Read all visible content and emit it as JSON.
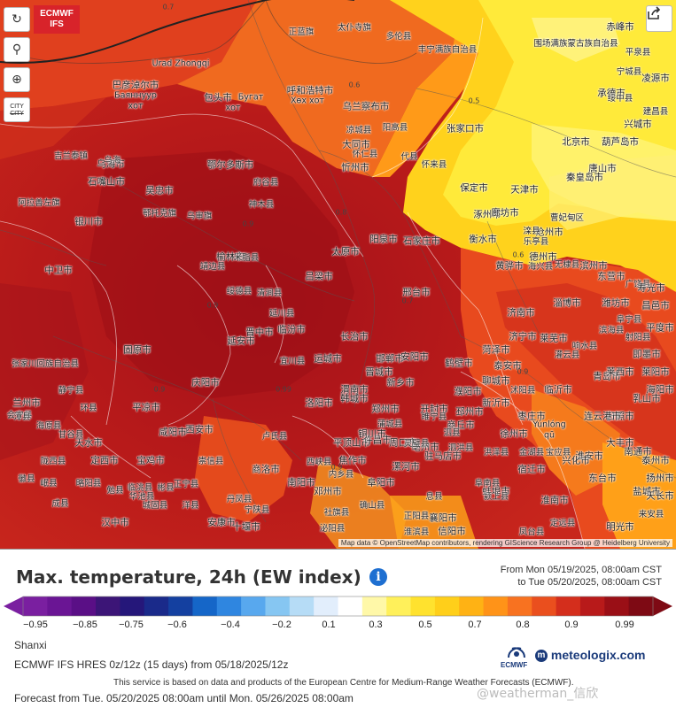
{
  "map": {
    "logo_line1": "ECMWF",
    "logo_line2": "IFS",
    "controls": [
      {
        "name": "refresh-button",
        "glyph": "↻"
      },
      {
        "name": "location-button",
        "glyph": "⚲"
      },
      {
        "name": "zoom-button",
        "glyph": "⊕"
      }
    ],
    "city_toggle_line1": "CITY",
    "city_toggle_line2": "CITY",
    "attribution": "Map data © OpenStreetMap contributors, rendering GIScience Research Group @ Heidelberg University",
    "isolines": [
      "0.7",
      "0.6",
      "0.6",
      "0.5",
      "0.8",
      "0.7",
      "0.9",
      "0.9",
      "0.9",
      "0.9",
      "0.99",
      "0.9"
    ],
    "cities": [
      "Urad Zhongqi",
      "巴彦淖尔市",
      "Баяннуур",
      "хот",
      "包头市",
      "Бугат",
      "хот",
      "呼和浩特市",
      "Хөх хот",
      "乌兰察布市",
      "凉城县",
      "阳高县",
      "大同市",
      "怀仁县",
      "代县",
      "忻州市",
      "太原市",
      "阳泉市",
      "石家庄市",
      "保定市",
      "天津市",
      "北京市",
      "唐山市",
      "承德市",
      "张家口市",
      "怀来县",
      "涿州市",
      "廊坊市",
      "沧州市",
      "衡水市",
      "邢台市",
      "邯郸市",
      "德州市",
      "济南市",
      "淄博市",
      "潍坊市",
      "青岛市",
      "日照市",
      "临沂市",
      "枣庄市",
      "徐州市",
      "连云港市",
      "盐城市",
      "淮安市",
      "宿迁市",
      "蚌埠市",
      "阜阳市",
      "亳州市",
      "商丘市",
      "开封市",
      "郑州市",
      "洛阳市",
      "平顶山市",
      "许昌市",
      "漯河市",
      "周口市",
      "驻马店市",
      "信阳市",
      "南阳市",
      "襄阳市",
      "十堰市",
      "汉中市",
      "安康市",
      "西安市",
      "咸阳市",
      "宝鸡市",
      "天水市",
      "平凉市",
      "庆阳市",
      "延安市",
      "榆林市",
      "神木县",
      "府谷县",
      "鄂尔多斯市",
      "乌海市",
      "银川市",
      "石嘴山市",
      "吴忠市",
      "中卫市",
      "固原市",
      "兰州市",
      "定西市",
      "临洮县",
      "渭南市",
      "运城市",
      "临汾市",
      "吕梁市",
      "晋中市",
      "长治市",
      "晋城市",
      "焦作市",
      "新乡市",
      "安阳市",
      "鹤壁市",
      "濮阳市",
      "聊城市",
      "菏泽市",
      "济宁市",
      "泰安市",
      "莱芜市",
      "Yúnlóng",
      "qū",
      "吉兰泰镇",
      "乌海",
      "阿拉善左旗",
      "鄂托克旗",
      "乌审旗",
      "靖边县",
      "米脂县",
      "绥德县",
      "清涧县",
      "延川县",
      "宜川县",
      "韩城市",
      "蒲城县",
      "铜川市",
      "彬县",
      "正宁县",
      "崇信县",
      "华池县",
      "环县",
      "海原县",
      "会宁县",
      "静宁县",
      "张家川回族自治县",
      "甘谷县",
      "陇西县",
      "漳县",
      "岷县",
      "成县",
      "徽县",
      "略阳县",
      "勉县",
      "城固县",
      "洋县",
      "宁陕县",
      "商洛市",
      "丹凤县",
      "卢氏县",
      "西峡县",
      "内乡县",
      "邓州市",
      "社旗县",
      "泌阳县",
      "确山县",
      "正阳县",
      "息县",
      "淮滨县",
      "阜南县",
      "颍上县",
      "凤台县",
      "淮南市",
      "定远县",
      "明光市",
      "来安县",
      "天长市",
      "扬州市",
      "泰州市",
      "南通市",
      "大丰市",
      "东台市",
      "兴化市",
      "宝应县",
      "金湖县",
      "洪泽县",
      "泗洪县",
      "泗县",
      "灵璧县",
      "睢宁县",
      "邳州市",
      "新沂市",
      "沭阳县",
      "灌云县",
      "响水县",
      "滨海县",
      "阜宁县",
      "射阳县",
      "正蓝旗",
      "太仆寺旗",
      "多伦县",
      "丰宁满族自治县",
      "围场满族蒙古族自治县",
      "赤峰市",
      "宁城县",
      "平泉县",
      "凌源市",
      "建昌县",
      "绥中县",
      "兴城市",
      "葫芦岛市",
      "秦皇岛市",
      "滦县",
      "乐亭县",
      "曹妃甸区",
      "黄骅市",
      "海兴县",
      "无棣县",
      "滨州市",
      "东营市",
      "广饶县",
      "寿光市",
      "昌邑市",
      "平度市",
      "即墨市",
      "莱西市",
      "莱阳市",
      "海阳市",
      "乳山市"
    ]
  },
  "legend": {
    "title": "Max. temperature, 24h (EW index)",
    "info_glyph": "i",
    "range_from": "From Mon 05/19/2025, 08:00am CST",
    "range_to": "to Tue 05/20/2025, 08:00am CST",
    "tick_labels": [
      "−0.95",
      "−0.85",
      "−0.75",
      "−0.6",
      "−0.4",
      "−0.2",
      "0.1",
      "0.3",
      "0.5",
      "0.7",
      "0.8",
      "0.9",
      "0.99"
    ],
    "colors": [
      "#7a1fa0",
      "#6a1594",
      "#5a0f86",
      "#3c1577",
      "#25177a",
      "#1a2a8a",
      "#1440a0",
      "#1566c8",
      "#2f86e0",
      "#58a8ee",
      "#86c6f2",
      "#b6dcf6",
      "#e2eefc",
      "#ffffff",
      "#fff8a8",
      "#fff05a",
      "#ffe22e",
      "#ffcf1a",
      "#ffb214",
      "#ff9318",
      "#f87220",
      "#ea4f1e",
      "#d42e1c",
      "#b81a1a",
      "#9a0f16",
      "#7e0a14"
    ],
    "region": "Shanxi",
    "model_line": "ECMWF IFS HRES 0z/12z  (15 days)  from 05/18/2025/12z",
    "notice": "This service is based on data and products of the European Centre for Medium-Range Weather Forecasts (ECMWF).",
    "forecast_line": "Forecast from Tue. 05/20/2025 08:00am until Mon. 05/26/2025 08:00am",
    "brand": "meteologix.com",
    "ecmwf_small": "ECMWF",
    "watermark": "@weatherman_信欣"
  }
}
